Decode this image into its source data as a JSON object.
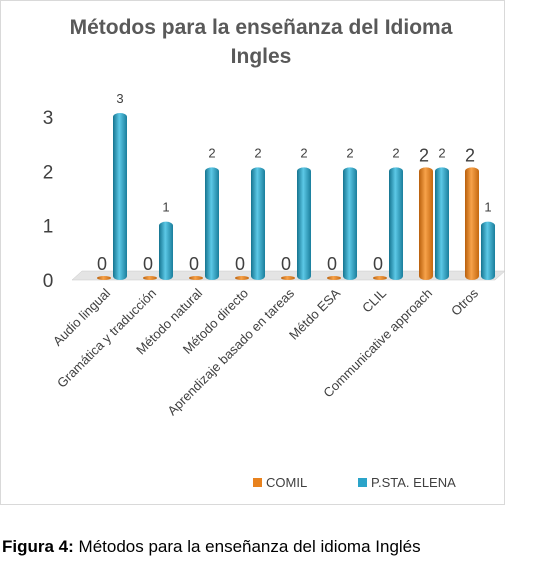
{
  "chart_data": {
    "type": "bar",
    "title": "Métodos para la enseñanza del Idioma Ingles",
    "categories": [
      "Audio lingual",
      "Gramática y traducción",
      "Método natural",
      "Método directo",
      "Aprendizaje basado en tareas",
      "Métdo ESA",
      "CLIL",
      "Communicative approach",
      "Otros"
    ],
    "series": [
      {
        "name": "COMIL",
        "color": "#e8821e",
        "values": [
          0,
          0,
          0,
          0,
          0,
          0,
          0,
          2,
          2
        ]
      },
      {
        "name": "P.STA. ELENA",
        "color": "#2ba4c9",
        "values": [
          3,
          1,
          2,
          2,
          2,
          2,
          2,
          2,
          1
        ]
      }
    ],
    "ylim": [
      0,
      3.3
    ],
    "yticks": [
      0,
      1,
      2,
      3
    ],
    "grid": false,
    "legend": "bottom"
  },
  "caption": {
    "label": "Figura 4:",
    "text": "Métodos para la enseñanza del idioma Inglés"
  }
}
